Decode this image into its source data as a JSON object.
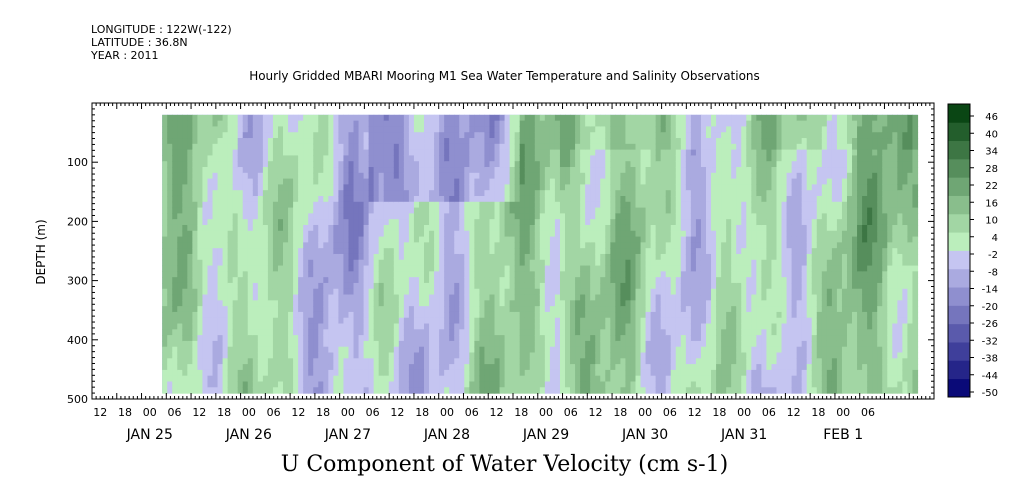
{
  "header": {
    "longitude": "LONGITUDE : 122W(-122)",
    "latitude": "LATITUDE : 36.8N",
    "year": "YEAR : 2011"
  },
  "chart_data": {
    "type": "heatmap",
    "title": "Hourly Gridded MBARI Mooring M1 Sea Water Temperature and Salinity Observations",
    "xlabel": "U Component of Water Velocity (cm s-1)",
    "ylabel": "DEPTH (m)",
    "ylim": [
      500,
      0
    ],
    "y_ticks": [
      100,
      200,
      300,
      400,
      500
    ],
    "x_range_hours": [
      "2011-01-24T10:00",
      "2011-02-01T22:00"
    ],
    "x_hour_ticks": [
      "12",
      "18",
      "00",
      "06",
      "12",
      "18",
      "00",
      "06",
      "12",
      "18",
      "00",
      "06",
      "12",
      "18",
      "00",
      "06",
      "12",
      "18",
      "00",
      "06",
      "12",
      "18",
      "00",
      "06",
      "12",
      "18",
      "00",
      "06",
      "12",
      "18",
      "00",
      "06"
    ],
    "x_day_labels": [
      "JAN 25",
      "JAN 26",
      "JAN 27",
      "JAN 28",
      "JAN 29",
      "JAN 30",
      "JAN 31",
      "FEB 1"
    ],
    "colorbar": {
      "levels": [
        -50,
        -44,
        -38,
        -32,
        -26,
        -20,
        -14,
        -8,
        -2,
        4,
        10,
        16,
        22,
        28,
        34,
        40,
        46
      ],
      "labels": [
        "46",
        "40",
        "34",
        "28",
        "22",
        "16",
        "10",
        "4",
        "-2",
        "-8",
        "-14",
        "-20",
        "-26",
        "-32",
        "-38",
        "-44",
        "-50"
      ]
    },
    "data_extent": {
      "x_start": "2011-01-25T03:00",
      "x_end": "2011-02-01T18:00",
      "depth_top": 20,
      "depth_bottom": 490
    },
    "colors": {
      "negative": "#7f8ff2",
      "positive": "#39e060",
      "neutral": "#c8f0c8"
    }
  }
}
